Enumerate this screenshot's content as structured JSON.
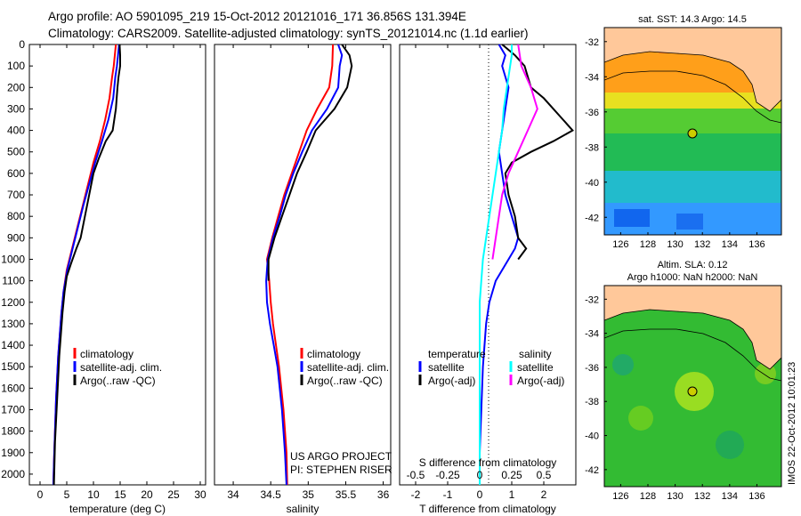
{
  "header": {
    "line1": "Argo profile: AO 5901095_219 15-Oct-2012 20121016_171 36.856S 131.394E",
    "line2": "Climatology: CARS2009. Satellite-adjusted climatology: synTS_20121014.nc (1.1d earlier)"
  },
  "colors": {
    "climatology": "#ff0000",
    "satellite": "#0000ff",
    "argo": "#000000",
    "cyan": "#00ffff",
    "magenta": "#ff00ff"
  },
  "chart_data": [
    {
      "type": "line",
      "xlabel": "temperature (deg C)",
      "xlim": [
        -2,
        31
      ],
      "xticks": [
        "0",
        "5",
        "10",
        "15",
        "20",
        "25",
        "30"
      ],
      "ylim": [
        0,
        2050
      ],
      "yticks": [
        "0",
        "100",
        "200",
        "300",
        "400",
        "500",
        "600",
        "700",
        "800",
        "900",
        "1000",
        "1100",
        "1200",
        "1300",
        "1400",
        "1500",
        "1600",
        "1700",
        "1800",
        "1900",
        "2000"
      ],
      "legend": [
        "climatology",
        "satellite-adj. clim.",
        "Argo(..raw -QC)"
      ],
      "series": [
        {
          "name": "climatology",
          "color": "#ff0000",
          "points": [
            [
              14.2,
              0
            ],
            [
              14,
              50
            ],
            [
              13.8,
              100
            ],
            [
              13.5,
              150
            ],
            [
              13,
              250
            ],
            [
              12.2,
              350
            ],
            [
              11.2,
              450
            ],
            [
              10,
              550
            ],
            [
              9,
              650
            ],
            [
              8,
              750
            ],
            [
              7,
              850
            ],
            [
              6,
              950
            ],
            [
              5,
              1050
            ],
            [
              4.4,
              1150
            ],
            [
              4,
              1250
            ],
            [
              3.7,
              1350
            ],
            [
              3.4,
              1450
            ],
            [
              3.2,
              1550
            ],
            [
              3,
              1650
            ],
            [
              2.8,
              1800
            ],
            [
              2.6,
              1950
            ],
            [
              2.5,
              2050
            ]
          ]
        },
        {
          "name": "satellite-adj. clim.",
          "color": "#0000ff",
          "points": [
            [
              14.8,
              0
            ],
            [
              14.6,
              50
            ],
            [
              14.4,
              100
            ],
            [
              14.1,
              150
            ],
            [
              13.7,
              250
            ],
            [
              12.8,
              350
            ],
            [
              11.6,
              450
            ],
            [
              10.3,
              550
            ],
            [
              9.2,
              650
            ],
            [
              8.1,
              750
            ],
            [
              7.1,
              850
            ],
            [
              6.1,
              950
            ],
            [
              5.1,
              1050
            ],
            [
              4.4,
              1150
            ],
            [
              4,
              1250
            ],
            [
              3.7,
              1350
            ],
            [
              3.4,
              1450
            ],
            [
              3.2,
              1550
            ],
            [
              3,
              1650
            ],
            [
              2.8,
              1800
            ],
            [
              2.6,
              1950
            ],
            [
              2.5,
              2050
            ]
          ]
        },
        {
          "name": "Argo(..raw -QC)",
          "color": "#000000",
          "points": [
            [
              14.9,
              0
            ],
            [
              15,
              50
            ],
            [
              15,
              100
            ],
            [
              14.7,
              150
            ],
            [
              14.5,
              200
            ],
            [
              14.2,
              300
            ],
            [
              13.6,
              400
            ],
            [
              12.3,
              450
            ],
            [
              11,
              530
            ],
            [
              10,
              600
            ],
            [
              9.2,
              700
            ],
            [
              8.4,
              800
            ],
            [
              7.6,
              900
            ],
            [
              6.8,
              950
            ],
            [
              5.8,
              1020
            ],
            [
              5,
              1080
            ],
            [
              4.6,
              1150
            ],
            [
              4.2,
              1250
            ],
            [
              3.9,
              1350
            ],
            [
              3.6,
              1450
            ],
            [
              3.4,
              1550
            ],
            [
              3.2,
              1650
            ],
            [
              3,
              1750
            ],
            [
              2.8,
              1850
            ],
            [
              2.7,
              1950
            ],
            [
              2.6,
              2050
            ]
          ]
        }
      ]
    },
    {
      "type": "line",
      "xlabel": "salinity",
      "xlim": [
        33.75,
        36.1
      ],
      "xticks": [
        "34",
        "34.5",
        "35",
        "35.5",
        "36"
      ],
      "ylim": [
        0,
        2050
      ],
      "legend": [
        "climatology",
        "satellite-adj. clim.",
        "Argo(..raw -QC)"
      ],
      "annotation": [
        "US ARGO PROJECT",
        "PI: STEPHEN RISER"
      ],
      "series": [
        {
          "name": "climatology",
          "color": "#ff0000",
          "points": [
            [
              35.33,
              0
            ],
            [
              35.32,
              100
            ],
            [
              35.28,
              200
            ],
            [
              35.12,
              300
            ],
            [
              34.98,
              400
            ],
            [
              34.88,
              500
            ],
            [
              34.78,
              600
            ],
            [
              34.68,
              700
            ],
            [
              34.6,
              800
            ],
            [
              34.52,
              900
            ],
            [
              34.45,
              1000
            ],
            [
              34.48,
              1100
            ],
            [
              34.5,
              1200
            ],
            [
              34.53,
              1300
            ],
            [
              34.57,
              1400
            ],
            [
              34.61,
              1500
            ],
            [
              34.64,
              1600
            ],
            [
              34.67,
              1700
            ],
            [
              34.69,
              1800
            ],
            [
              34.71,
              1900
            ],
            [
              34.72,
              2050
            ]
          ]
        },
        {
          "name": "satellite-adj. clim.",
          "color": "#0000ff",
          "points": [
            [
              35.4,
              0
            ],
            [
              35.45,
              50
            ],
            [
              35.42,
              100
            ],
            [
              35.4,
              200
            ],
            [
              35.25,
              300
            ],
            [
              35.05,
              400
            ],
            [
              34.92,
              500
            ],
            [
              34.8,
              600
            ],
            [
              34.7,
              700
            ],
            [
              34.62,
              800
            ],
            [
              34.53,
              900
            ],
            [
              34.46,
              1000
            ],
            [
              34.44,
              1100
            ],
            [
              34.45,
              1200
            ],
            [
              34.49,
              1300
            ],
            [
              34.54,
              1400
            ],
            [
              34.59,
              1500
            ],
            [
              34.62,
              1600
            ],
            [
              34.65,
              1700
            ],
            [
              34.67,
              1800
            ],
            [
              34.69,
              1900
            ],
            [
              34.71,
              2050
            ]
          ]
        },
        {
          "name": "Argo(..raw -QC)",
          "color": "#000000",
          "points": [
            [
              35.45,
              0
            ],
            [
              35.55,
              50
            ],
            [
              35.58,
              100
            ],
            [
              35.52,
              200
            ],
            [
              35.35,
              300
            ],
            [
              35.1,
              400
            ],
            [
              34.98,
              500
            ],
            [
              34.85,
              600
            ],
            [
              34.75,
              700
            ],
            [
              34.65,
              800
            ],
            [
              34.55,
              900
            ],
            [
              34.47,
              1000
            ],
            [
              34.47,
              1100
            ]
          ]
        }
      ]
    },
    {
      "type": "line",
      "xlabel": "T difference from climatology",
      "xlabel_top": "S difference from climatology",
      "xlim": [
        -2.5,
        3
      ],
      "xticks": [
        "-2",
        "-1",
        "0",
        "1",
        "2"
      ],
      "xticks_top": [
        "-0.5",
        "-0.25",
        "0",
        "0.25",
        "0.5"
      ],
      "ylim": [
        0,
        2050
      ],
      "legend_temperature_title": "temperature",
      "legend_salinity_title": "salinity",
      "legend_temperature": [
        "satellite",
        "Argo(-adj)"
      ],
      "legend_salinity": [
        "satellite",
        "Argo(-adj)"
      ],
      "series": [
        {
          "name": "satellite",
          "color": "#0000ff",
          "points": [
            [
              0.6,
              0
            ],
            [
              0.8,
              50
            ],
            [
              0.7,
              100
            ],
            [
              0.9,
              200
            ],
            [
              0.8,
              300
            ],
            [
              0.7,
              400
            ],
            [
              0.6,
              500
            ],
            [
              0.7,
              600
            ],
            [
              0.8,
              700
            ],
            [
              1,
              800
            ],
            [
              1.2,
              900
            ],
            [
              1.1,
              950
            ],
            [
              0.9,
              1000
            ],
            [
              0.5,
              1100
            ],
            [
              0.3,
              1200
            ],
            [
              0.2,
              1300
            ],
            [
              0.1,
              1500
            ],
            [
              0.05,
              1700
            ],
            [
              0,
              1900
            ],
            [
              0,
              2050
            ]
          ]
        },
        {
          "name": "Argo(-adj)",
          "color": "#000000",
          "points": [
            [
              0.7,
              0
            ],
            [
              1.1,
              50
            ],
            [
              1.4,
              100
            ],
            [
              1.6,
              200
            ],
            [
              2,
              250
            ],
            [
              2.6,
              350
            ],
            [
              2.9,
              400
            ],
            [
              2.3,
              450
            ],
            [
              1.6,
              500
            ],
            [
              1,
              550
            ],
            [
              0.8,
              600
            ],
            [
              0.9,
              700
            ],
            [
              1.1,
              800
            ],
            [
              1.2,
              900
            ],
            [
              1.45,
              950
            ],
            [
              1.2,
              1000
            ]
          ]
        },
        {
          "name": "satellite",
          "color": "#00ffff",
          "points": [
            [
              1,
              0
            ],
            [
              1,
              50
            ],
            [
              0.95,
              100
            ],
            [
              0.85,
              200
            ],
            [
              0.75,
              300
            ],
            [
              0.7,
              400
            ],
            [
              0.6,
              500
            ],
            [
              0.5,
              600
            ],
            [
              0.4,
              700
            ],
            [
              0.3,
              800
            ],
            [
              0.2,
              900
            ],
            [
              0.1,
              1000
            ],
            [
              0.05,
              1100
            ],
            [
              0,
              1200
            ],
            [
              0,
              2050
            ]
          ]
        },
        {
          "name": "Argo(-adj)",
          "color": "#ff00ff",
          "points": [
            [
              1.2,
              0
            ],
            [
              1.3,
              100
            ],
            [
              1.6,
              200
            ],
            [
              1.8,
              300
            ],
            [
              1.5,
              400
            ],
            [
              1.2,
              500
            ],
            [
              0.9,
              600
            ],
            [
              0.7,
              700
            ],
            [
              0.6,
              800
            ],
            [
              0.5,
              900
            ],
            [
              0.4,
              1000
            ]
          ]
        }
      ]
    },
    {
      "type": "heatmap",
      "title": "sat. SST: 14.3 Argo: 14.5",
      "xticks": [
        "126",
        "128",
        "130",
        "132",
        "134",
        "136"
      ],
      "yticks": [
        "-32",
        "-34",
        "-36",
        "-38",
        "-40",
        "-42"
      ],
      "xlim": [
        124.8,
        137.8
      ],
      "ylim": [
        -43,
        -31.2
      ],
      "marker": [
        131.4,
        -36.86
      ]
    },
    {
      "type": "heatmap",
      "title_line1": "Altim. SLA: 0.12",
      "title_line2": "Argo h1000: NaN h2000: NaN",
      "xticks": [
        "126",
        "128",
        "130",
        "132",
        "134",
        "136"
      ],
      "yticks": [
        "-32",
        "-34",
        "-36",
        "-38",
        "-40",
        "-42"
      ],
      "xlim": [
        124.8,
        137.8
      ],
      "ylim": [
        -43,
        -31.2
      ],
      "marker": [
        131.4,
        -36.86
      ]
    }
  ],
  "footer": {
    "stamp": "IMOS 22-Oct-2012 10:01:23"
  }
}
